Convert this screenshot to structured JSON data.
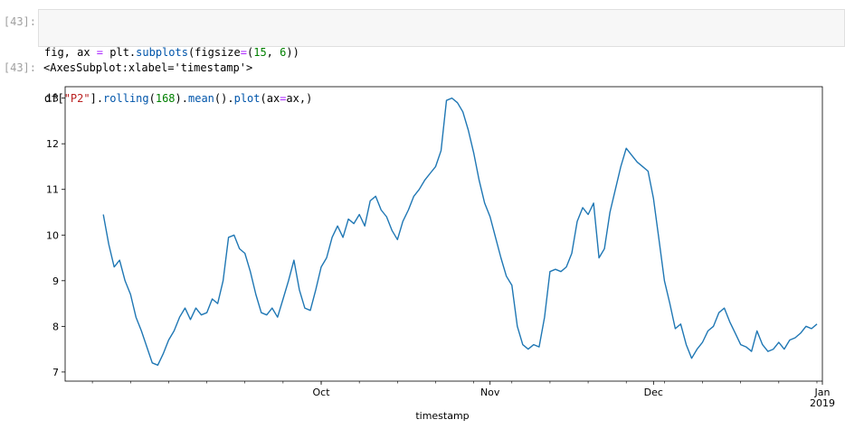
{
  "input_cell": {
    "prompt": "[43]:",
    "line1": [
      {
        "t": "txt",
        "v": "fig, ax "
      },
      {
        "t": "op",
        "v": "="
      },
      {
        "t": "txt",
        "v": " plt."
      },
      {
        "t": "fn",
        "v": "subplots"
      },
      {
        "t": "txt",
        "v": "(figsize"
      },
      {
        "t": "op",
        "v": "="
      },
      {
        "t": "txt",
        "v": "("
      },
      {
        "t": "num",
        "v": "15"
      },
      {
        "t": "txt",
        "v": ", "
      },
      {
        "t": "num",
        "v": "6"
      },
      {
        "t": "txt",
        "v": "))"
      }
    ],
    "line2": [
      {
        "t": "txt",
        "v": "df["
      },
      {
        "t": "str",
        "v": "\"P2\""
      },
      {
        "t": "txt",
        "v": "]."
      },
      {
        "t": "fn",
        "v": "rolling"
      },
      {
        "t": "txt",
        "v": "("
      },
      {
        "t": "num",
        "v": "168"
      },
      {
        "t": "txt",
        "v": ")."
      },
      {
        "t": "fn",
        "v": "mean"
      },
      {
        "t": "txt",
        "v": "()."
      },
      {
        "t": "fn",
        "v": "plot"
      },
      {
        "t": "txt",
        "v": "(ax"
      },
      {
        "t": "op",
        "v": "="
      },
      {
        "t": "txt",
        "v": "ax,)"
      }
    ]
  },
  "output_cell": {
    "prompt": "[43]:",
    "text": "<AxesSubplot:xlabel='timestamp'>"
  },
  "chart_data": {
    "type": "line",
    "title": "",
    "xlabel": "timestamp",
    "ylabel": "",
    "line_color": "#1f77b4",
    "xlim": [
      "2018-08-15",
      "2019-01-01"
    ],
    "ylim": [
      6.8,
      13.25
    ],
    "yticks": [
      7,
      8,
      9,
      10,
      11,
      12,
      13
    ],
    "xtick_labels": [
      {
        "x": "2018-10-01",
        "label": "Oct"
      },
      {
        "x": "2018-11-01",
        "label": "Nov"
      },
      {
        "x": "2018-12-01",
        "label": "Dec"
      },
      {
        "x": "2019-01-01",
        "label": "Jan\n2019"
      }
    ],
    "minor_ticks_weekly": true,
    "grid": false,
    "legend": "none",
    "series": [
      {
        "points": [
          [
            "2018-08-22",
            10.45
          ],
          [
            "2018-08-23",
            9.8
          ],
          [
            "2018-08-24",
            9.3
          ],
          [
            "2018-08-25",
            9.45
          ],
          [
            "2018-08-26",
            9.0
          ],
          [
            "2018-08-27",
            8.7
          ],
          [
            "2018-08-28",
            8.2
          ],
          [
            "2018-08-29",
            7.9
          ],
          [
            "2018-08-30",
            7.55
          ],
          [
            "2018-08-31",
            7.2
          ],
          [
            "2018-09-01",
            7.15
          ],
          [
            "2018-09-02",
            7.4
          ],
          [
            "2018-09-03",
            7.7
          ],
          [
            "2018-09-04",
            7.9
          ],
          [
            "2018-09-05",
            8.2
          ],
          [
            "2018-09-06",
            8.4
          ],
          [
            "2018-09-07",
            8.15
          ],
          [
            "2018-09-08",
            8.4
          ],
          [
            "2018-09-09",
            8.25
          ],
          [
            "2018-09-10",
            8.3
          ],
          [
            "2018-09-11",
            8.6
          ],
          [
            "2018-09-12",
            8.5
          ],
          [
            "2018-09-13",
            9.0
          ],
          [
            "2018-09-14",
            9.95
          ],
          [
            "2018-09-15",
            10.0
          ],
          [
            "2018-09-16",
            9.7
          ],
          [
            "2018-09-17",
            9.6
          ],
          [
            "2018-09-18",
            9.2
          ],
          [
            "2018-09-19",
            8.7
          ],
          [
            "2018-09-20",
            8.3
          ],
          [
            "2018-09-21",
            8.25
          ],
          [
            "2018-09-22",
            8.4
          ],
          [
            "2018-09-23",
            8.2
          ],
          [
            "2018-09-24",
            8.6
          ],
          [
            "2018-09-25",
            9.0
          ],
          [
            "2018-09-26",
            9.45
          ],
          [
            "2018-09-27",
            8.8
          ],
          [
            "2018-09-28",
            8.4
          ],
          [
            "2018-09-29",
            8.35
          ],
          [
            "2018-09-30",
            8.8
          ],
          [
            "2018-10-01",
            9.3
          ],
          [
            "2018-10-02",
            9.5
          ],
          [
            "2018-10-03",
            9.95
          ],
          [
            "2018-10-04",
            10.2
          ],
          [
            "2018-10-05",
            9.95
          ],
          [
            "2018-10-06",
            10.35
          ],
          [
            "2018-10-07",
            10.25
          ],
          [
            "2018-10-08",
            10.45
          ],
          [
            "2018-10-09",
            10.2
          ],
          [
            "2018-10-10",
            10.75
          ],
          [
            "2018-10-11",
            10.85
          ],
          [
            "2018-10-12",
            10.55
          ],
          [
            "2018-10-13",
            10.4
          ],
          [
            "2018-10-14",
            10.1
          ],
          [
            "2018-10-15",
            9.9
          ],
          [
            "2018-10-16",
            10.3
          ],
          [
            "2018-10-17",
            10.55
          ],
          [
            "2018-10-18",
            10.85
          ],
          [
            "2018-10-19",
            11.0
          ],
          [
            "2018-10-20",
            11.2
          ],
          [
            "2018-10-21",
            11.35
          ],
          [
            "2018-10-22",
            11.5
          ],
          [
            "2018-10-23",
            11.85
          ],
          [
            "2018-10-24",
            12.95
          ],
          [
            "2018-10-25",
            13.0
          ],
          [
            "2018-10-26",
            12.9
          ],
          [
            "2018-10-27",
            12.7
          ],
          [
            "2018-10-28",
            12.3
          ],
          [
            "2018-10-29",
            11.8
          ],
          [
            "2018-10-30",
            11.2
          ],
          [
            "2018-10-31",
            10.7
          ],
          [
            "2018-11-01",
            10.4
          ],
          [
            "2018-11-02",
            9.95
          ],
          [
            "2018-11-03",
            9.5
          ],
          [
            "2018-11-04",
            9.1
          ],
          [
            "2018-11-05",
            8.9
          ],
          [
            "2018-11-06",
            8.0
          ],
          [
            "2018-11-07",
            7.6
          ],
          [
            "2018-11-08",
            7.5
          ],
          [
            "2018-11-09",
            7.6
          ],
          [
            "2018-11-10",
            7.55
          ],
          [
            "2018-11-11",
            8.2
          ],
          [
            "2018-11-12",
            9.2
          ],
          [
            "2018-11-13",
            9.25
          ],
          [
            "2018-11-14",
            9.2
          ],
          [
            "2018-11-15",
            9.3
          ],
          [
            "2018-11-16",
            9.6
          ],
          [
            "2018-11-17",
            10.3
          ],
          [
            "2018-11-18",
            10.6
          ],
          [
            "2018-11-19",
            10.45
          ],
          [
            "2018-11-20",
            10.7
          ],
          [
            "2018-11-21",
            9.5
          ],
          [
            "2018-11-22",
            9.7
          ],
          [
            "2018-11-23",
            10.5
          ],
          [
            "2018-11-24",
            11.0
          ],
          [
            "2018-11-25",
            11.5
          ],
          [
            "2018-11-26",
            11.9
          ],
          [
            "2018-11-27",
            11.75
          ],
          [
            "2018-11-28",
            11.6
          ],
          [
            "2018-11-29",
            11.5
          ],
          [
            "2018-11-30",
            11.4
          ],
          [
            "2018-12-01",
            10.8
          ],
          [
            "2018-12-02",
            9.9
          ],
          [
            "2018-12-03",
            9.0
          ],
          [
            "2018-12-04",
            8.5
          ],
          [
            "2018-12-05",
            7.95
          ],
          [
            "2018-12-06",
            8.05
          ],
          [
            "2018-12-07",
            7.6
          ],
          [
            "2018-12-08",
            7.3
          ],
          [
            "2018-12-09",
            7.5
          ],
          [
            "2018-12-10",
            7.65
          ],
          [
            "2018-12-11",
            7.9
          ],
          [
            "2018-12-12",
            8.0
          ],
          [
            "2018-12-13",
            8.3
          ],
          [
            "2018-12-14",
            8.4
          ],
          [
            "2018-12-15",
            8.1
          ],
          [
            "2018-12-16",
            7.85
          ],
          [
            "2018-12-17",
            7.6
          ],
          [
            "2018-12-18",
            7.55
          ],
          [
            "2018-12-19",
            7.45
          ],
          [
            "2018-12-20",
            7.9
          ],
          [
            "2018-12-21",
            7.6
          ],
          [
            "2018-12-22",
            7.45
          ],
          [
            "2018-12-23",
            7.5
          ],
          [
            "2018-12-24",
            7.65
          ],
          [
            "2018-12-25",
            7.5
          ],
          [
            "2018-12-26",
            7.7
          ],
          [
            "2018-12-27",
            7.75
          ],
          [
            "2018-12-28",
            7.85
          ],
          [
            "2018-12-29",
            8.0
          ],
          [
            "2018-12-30",
            7.95
          ],
          [
            "2018-12-31",
            8.05
          ]
        ]
      }
    ]
  }
}
